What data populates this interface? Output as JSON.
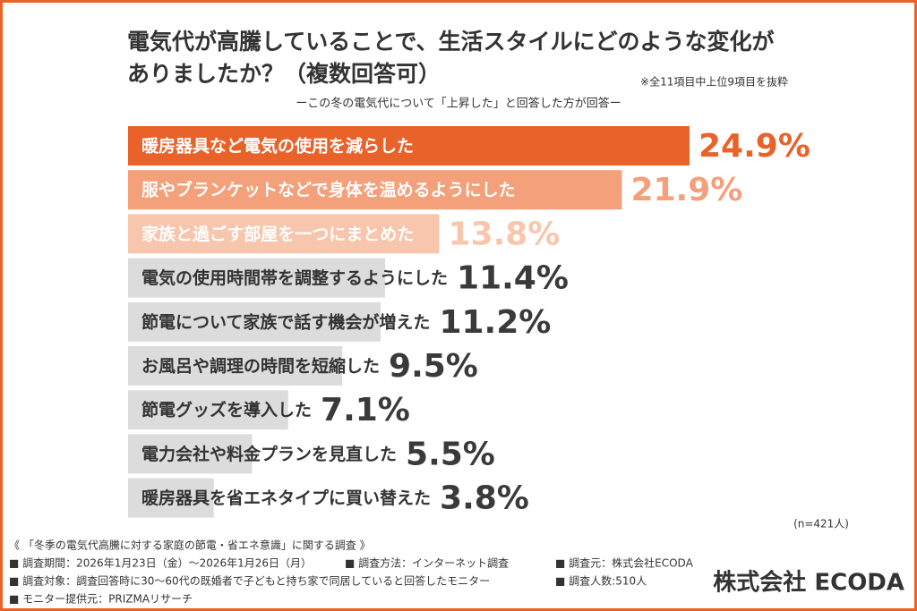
{
  "chart_data": {
    "type": "bar",
    "orientation": "horizontal",
    "title": [
      "電気代が高騰していることで、生活スタイルにどのような変化が",
      "ありましたか？（複数回答可）"
    ],
    "note": "※全11項目中上位9項目を抜粋",
    "subtitle": "ーこの冬の電気代について「上昇した」と回答した方が回答ー",
    "categories": [
      "暖房器具など電気の使用を減らした",
      "服やブランケットなどで身体を温めるようにした",
      "家族と過ごす部屋を一つにまとめた",
      "電気の使用時間帯を調整するようにした",
      "節電について家族で話す機会が増えた",
      "お風呂や調理の時間を短縮した",
      "節電グッズを導入した",
      "電力会社や料金プランを見直した",
      "暖房器具を省エネタイプに買い替えた"
    ],
    "values": [
      24.9,
      21.9,
      13.8,
      11.4,
      11.2,
      9.5,
      7.1,
      5.5,
      3.8
    ],
    "value_labels": [
      "24.9%",
      "21.9%",
      "13.8%",
      "11.4%",
      "11.2%",
      "9.5%",
      "7.1%",
      "5.5%",
      "3.8%"
    ],
    "bar_colors": [
      "#e8622a",
      "#f4a07a",
      "#f8c6ad",
      "#dcdcdc",
      "#dcdcdc",
      "#dcdcdc",
      "#dcdcdc",
      "#dcdcdc",
      "#dcdcdc"
    ],
    "label_colors": [
      "#ffffff",
      "#ffffff",
      "#ffffff",
      "#333333",
      "#333333",
      "#333333",
      "#333333",
      "#333333",
      "#333333"
    ],
    "value_label_colors": [
      "#e8622a",
      "#f4a07a",
      "#f8c6ad",
      "#3a3a3a",
      "#3a3a3a",
      "#3a3a3a",
      "#3a3a3a",
      "#3a3a3a",
      "#3a3a3a"
    ],
    "sample_note": "(n=421人)"
  },
  "footer": {
    "survey_title": "《 「冬季の電気代高騰に対する家庭の節電・省エネ意識」に関する調査 》",
    "items": [
      "■ 調査期間：2026年1月23日（金）〜2026年1月26日（月）",
      "■ 調査方法：インターネット調査",
      "■ 調査元：株式会社ECODA",
      "■ 調査対象：調査回答時に30〜60代の既婚者で子どもと持ち家で同居していると回答したモニター",
      "■ 調査人数:510人",
      "■ モニター提供元：PRIZMAリサーチ"
    ],
    "logo": "株式会社 ECODA"
  }
}
